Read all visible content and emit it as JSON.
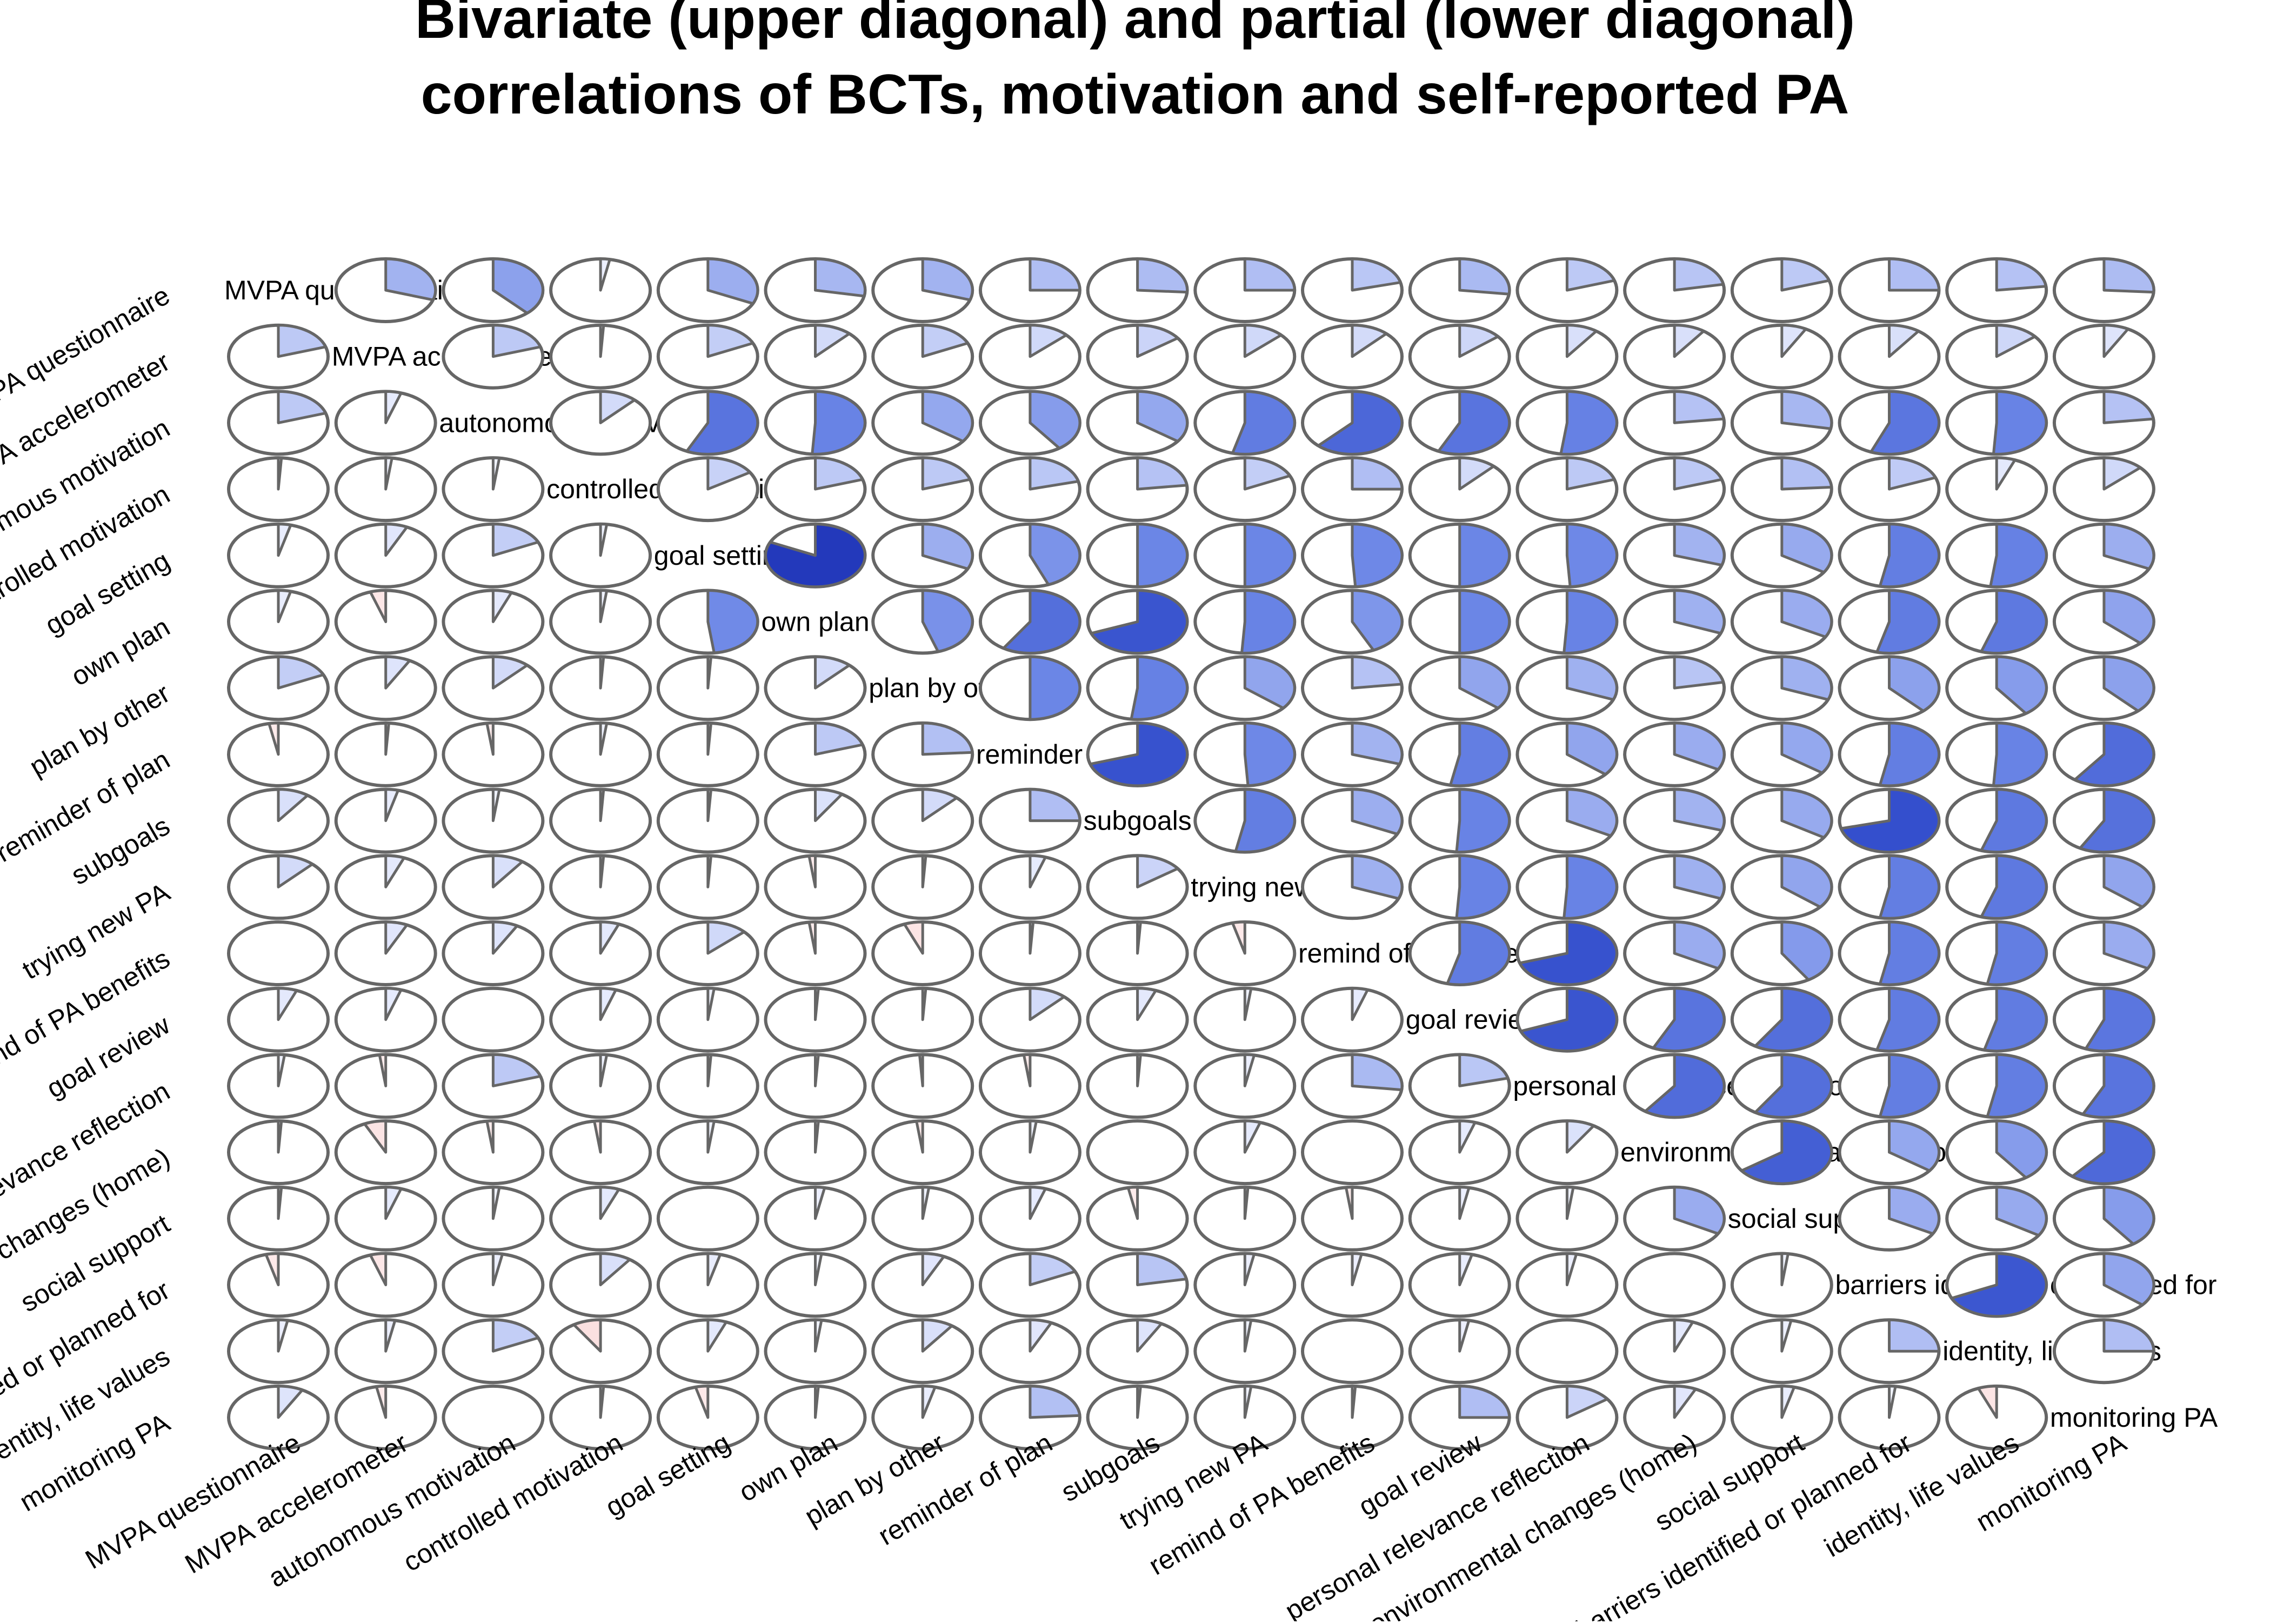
{
  "chart_data": {
    "type": "heatmap",
    "title": "Bivariate (upper diagonal) and partial (lower diagonal) correlations of BCTs, motivation and self-reported PA",
    "title_lines": [
      "Bivariate (upper diagonal) and partial (lower diagonal)",
      "correlations of BCTs, motivation and self-reported PA"
    ],
    "glyph": "pie",
    "upper_triangle": "bivariate correlations",
    "lower_triangle": "partial correlations",
    "colors": {
      "positive": "#2033c0",
      "negative": "#c84040",
      "border": "#666666",
      "background": "#ffffff"
    },
    "variables": [
      "MVPA questionnaire",
      "MVPA accelerometer",
      "autonomous motivation",
      "controlled motivation",
      "goal setting",
      "own plan",
      "plan by other",
      "reminder of plan",
      "subgoals",
      "trying new PA",
      "remind of PA benefits",
      "goal review",
      "personal relevance reflection",
      "environmental changes (home)",
      "social support",
      "barriers identified or planned for",
      "identity, life values",
      "monitoring PA"
    ],
    "diagonal_labels": [
      "MVPA questionnaire",
      "MVPA accelerometer",
      "autonomous motivation",
      "controlled motivation",
      "goal setting",
      "own plan",
      "plan by other",
      "reminder of plan",
      "subgoals",
      "trying new PA",
      "remind of PA benefits",
      "goal review",
      "personal relevance reflection",
      "environmental changes (home)",
      "social support",
      "barriers identified or planned for",
      "identity, life values",
      "monitoring PA"
    ],
    "correlation_matrix": [
      [
        1.0,
        0.3,
        0.38,
        0.03,
        0.32,
        0.28,
        0.3,
        0.25,
        0.26,
        0.25,
        0.21,
        0.27,
        0.2,
        0.22,
        0.2,
        0.25,
        0.23,
        0.26
      ],
      [
        0.2,
        1.0,
        0.2,
        0.01,
        0.18,
        0.12,
        0.18,
        0.13,
        0.15,
        0.13,
        0.12,
        0.14,
        0.1,
        0.1,
        0.08,
        0.1,
        0.14,
        0.08
      ],
      [
        0.2,
        0.05,
        1.0,
        0.12,
        0.57,
        0.51,
        0.35,
        0.4,
        0.35,
        0.54,
        0.62,
        0.57,
        0.52,
        0.23,
        0.28,
        0.56,
        0.51,
        0.23
      ],
      [
        0.01,
        0.02,
        0.02,
        1.0,
        0.16,
        0.2,
        0.2,
        0.21,
        0.23,
        0.18,
        0.25,
        0.12,
        0.2,
        0.2,
        0.24,
        0.19,
        0.06,
        0.13
      ],
      [
        0.04,
        0.07,
        0.18,
        0.02,
        1.0,
        0.82,
        0.32,
        0.44,
        0.5,
        0.5,
        0.49,
        0.5,
        0.49,
        0.3,
        0.34,
        0.53,
        0.52,
        0.32
      ],
      [
        0.04,
        -0.05,
        0.06,
        0.02,
        0.48,
        1.0,
        0.45,
        0.59,
        0.69,
        0.51,
        0.43,
        0.5,
        0.51,
        0.31,
        0.33,
        0.54,
        0.55,
        0.37
      ],
      [
        0.18,
        0.08,
        0.12,
        0.01,
        0.01,
        0.12,
        1.0,
        0.5,
        0.52,
        0.36,
        0.23,
        0.36,
        0.31,
        0.22,
        0.31,
        0.38,
        0.4,
        0.38
      ],
      [
        -0.03,
        0.01,
        -0.02,
        0.02,
        0.01,
        0.2,
        0.24,
        1.0,
        0.7,
        0.49,
        0.3,
        0.53,
        0.36,
        0.33,
        0.35,
        0.53,
        0.51,
        0.6
      ],
      [
        0.1,
        0.04,
        0.02,
        0.01,
        0.01,
        0.09,
        0.12,
        0.25,
        1.0,
        0.53,
        0.32,
        0.51,
        0.33,
        0.3,
        0.34,
        0.71,
        0.55,
        0.58
      ],
      [
        0.12,
        0.06,
        0.1,
        0.01,
        0.01,
        -0.02,
        0.01,
        0.05,
        0.15,
        1.0,
        0.31,
        0.51,
        0.51,
        0.31,
        0.36,
        0.53,
        0.55,
        0.36
      ],
      [
        0.0,
        0.07,
        0.08,
        0.06,
        0.13,
        -0.02,
        -0.06,
        0.01,
        0.01,
        -0.04,
        1.0,
        0.54,
        0.7,
        0.33,
        0.41,
        0.53,
        0.53,
        0.33
      ],
      [
        0.06,
        0.05,
        0.0,
        0.05,
        0.02,
        0.01,
        0.01,
        0.12,
        0.06,
        0.02,
        0.05,
        1.0,
        0.69,
        0.57,
        0.59,
        0.54,
        0.54,
        0.56
      ],
      [
        0.02,
        -0.02,
        0.2,
        0.02,
        0.01,
        0.01,
        -0.01,
        -0.02,
        0.01,
        0.03,
        0.27,
        0.21,
        1.0,
        0.6,
        0.59,
        0.53,
        0.53,
        0.57
      ],
      [
        0.01,
        -0.07,
        -0.02,
        -0.02,
        0.02,
        0.01,
        -0.02,
        0.02,
        0.0,
        0.05,
        0.0,
        0.05,
        0.09,
        1.0,
        0.65,
        0.35,
        0.4,
        0.61
      ],
      [
        0.01,
        0.05,
        0.02,
        0.06,
        0.0,
        0.03,
        0.02,
        0.05,
        -0.03,
        0.01,
        -0.02,
        0.03,
        0.02,
        0.33,
        1.0,
        0.33,
        0.34,
        0.4
      ],
      [
        -0.04,
        -0.05,
        0.03,
        0.1,
        0.04,
        0.02,
        0.07,
        0.18,
        0.22,
        0.03,
        0.03,
        0.04,
        0.03,
        0.0,
        0.02,
        1.0,
        0.68,
        0.36
      ],
      [
        0.03,
        0.03,
        0.18,
        -0.09,
        0.06,
        0.02,
        0.1,
        0.07,
        0.08,
        0.02,
        0.0,
        0.03,
        0.0,
        0.06,
        0.03,
        0.25,
        1.0,
        0.25
      ],
      [
        0.08,
        -0.03,
        0.0,
        0.01,
        -0.04,
        0.01,
        0.04,
        0.24,
        0.01,
        0.02,
        0.01,
        0.25,
        0.15,
        0.07,
        0.04,
        0.02,
        -0.06,
        1.0
      ]
    ]
  }
}
